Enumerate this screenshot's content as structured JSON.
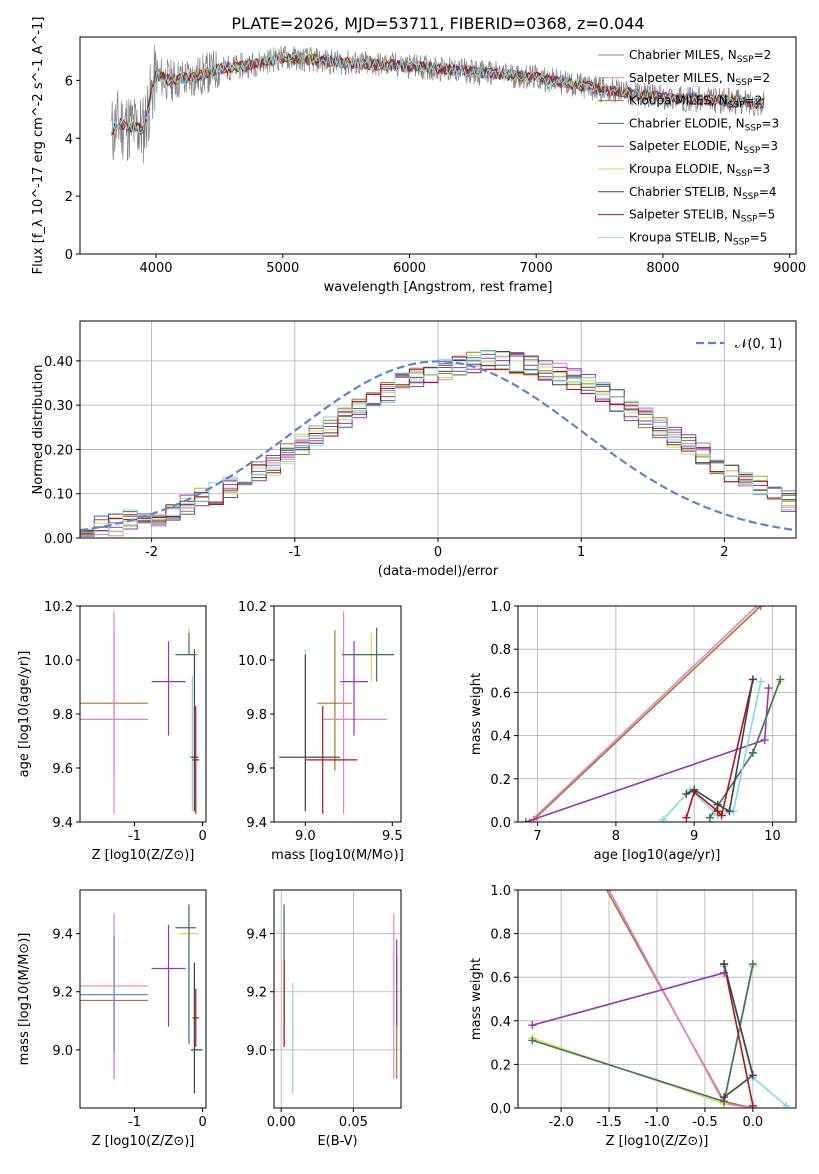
{
  "figure_title": "PLATE=2026, MJD=53711, FIBERID=0368, z=0.044",
  "colors": {
    "chabrier_miles": "#6b8bd6",
    "salpeter_miles": "#e87fc7",
    "kroupa_miles": "#a07a2a",
    "chabrier_elodie": "#3f6f6f",
    "salpeter_elodie": "#9a35b8",
    "kroupa_elodie": "#d2e04a",
    "chabrier_stelib": "#444444",
    "salpeter_stelib": "#b01414",
    "kroupa_stelib": "#86d8e0",
    "data_spectrum": "#808080",
    "gaussian": "#5b84d4"
  },
  "chart_data": [
    {
      "id": "spectrum",
      "type": "line",
      "title": "PLATE=2026, MJD=53711, FIBERID=0368, z=0.044",
      "xlabel": "wavelength [Angstrom, rest frame]",
      "ylabel": "Flux [f_λ 10^-17 erg cm^-2 s^-1 A^-1]",
      "xlim": [
        3400,
        9050
      ],
      "ylim": [
        0,
        7.5
      ],
      "xticks": [
        4000,
        5000,
        6000,
        7000,
        8000,
        9000
      ],
      "yticks": [
        0,
        2,
        4,
        6
      ],
      "legend": "right",
      "series": [
        {
          "name": "Chabrier MILES, N_SSP=2",
          "color": "#6b8bd6"
        },
        {
          "name": "Salpeter MILES, N_SSP=2",
          "color": "#e87fc7"
        },
        {
          "name": "Kroupa MILES, N_SSP=2",
          "color": "#a07a2a"
        },
        {
          "name": "Chabrier ELODIE, N_SSP=3",
          "color": "#3f6f6f"
        },
        {
          "name": "Salpeter ELODIE, N_SSP=3",
          "color": "#9a35b8"
        },
        {
          "name": "Kroupa ELODIE, N_SSP=3",
          "color": "#d2e04a"
        },
        {
          "name": "Chabrier STELIB, N_SSP=4",
          "color": "#444444"
        },
        {
          "name": "Salpeter STELIB, N_SSP=5",
          "color": "#b01414"
        },
        {
          "name": "Kroupa STELIB, N_SSP=5",
          "color": "#86d8e0"
        }
      ],
      "model_continuum": {
        "x": [
          3650,
          3700,
          3800,
          3900,
          4000,
          4100,
          4300,
          4500,
          4700,
          5000,
          5500,
          6000,
          6500,
          7000,
          7500,
          8000,
          8500,
          8800
        ],
        "y": [
          4.2,
          4.5,
          4.4,
          4.3,
          6.2,
          6.0,
          6.1,
          6.4,
          6.5,
          6.8,
          6.6,
          6.5,
          6.3,
          6.1,
          5.7,
          5.4,
          5.3,
          5.2
        ]
      },
      "plotted_range": [
        3650,
        8800
      ]
    },
    {
      "id": "residuals",
      "type": "bar",
      "xlabel": "(data-model)/error",
      "ylabel": "Normed distribution",
      "xlim": [
        -2.5,
        2.5
      ],
      "ylim": [
        0,
        0.49
      ],
      "xticks": [
        -2,
        -1,
        0,
        1,
        2
      ],
      "yticks": [
        0.0,
        0.1,
        0.2,
        0.3,
        0.4
      ],
      "grid": true,
      "legend": "top-right",
      "gaussian_label": "𝒩(0, 1)",
      "bin_edges_start": -2.5,
      "bin_width": 0.1,
      "histogram": [
        0.02,
        0.025,
        0.03,
        0.04,
        0.045,
        0.05,
        0.06,
        0.075,
        0.09,
        0.1,
        0.115,
        0.13,
        0.15,
        0.165,
        0.19,
        0.21,
        0.23,
        0.25,
        0.27,
        0.29,
        0.31,
        0.33,
        0.35,
        0.36,
        0.37,
        0.38,
        0.39,
        0.395,
        0.4,
        0.4,
        0.395,
        0.39,
        0.38,
        0.37,
        0.36,
        0.345,
        0.33,
        0.31,
        0.29,
        0.27,
        0.25,
        0.23,
        0.21,
        0.19,
        0.17,
        0.15,
        0.13,
        0.115,
        0.1,
        0.085
      ],
      "gaussian": {
        "mu": 0,
        "sigma": 1
      }
    },
    {
      "id": "age_vs_Z",
      "type": "scatter",
      "xlabel": "Z [log10(Z/Z⊙)]",
      "ylabel": "age [log10(age/yr)]",
      "xlim": [
        -1.8,
        0.05
      ],
      "ylim": [
        9.4,
        10.2
      ],
      "xticks": [
        -1,
        0
      ],
      "yticks": [
        9.4,
        9.6,
        9.8,
        10.0,
        10.2
      ],
      "points": [
        {
          "series": "Kroupa MILES",
          "x": -1.3,
          "y": 9.84,
          "xerr": [
            0.5,
            0.5
          ],
          "yerr": [
            0.25,
            0.27
          ]
        },
        {
          "series": "Salpeter MILES",
          "x": -1.3,
          "y": 9.78,
          "xerr": [
            0.5,
            0.5
          ],
          "yerr": [
            0.35,
            0.4
          ]
        },
        {
          "series": "Salpeter ELODIE",
          "x": -0.5,
          "y": 9.92,
          "xerr": [
            0.25,
            0.25
          ],
          "yerr": [
            0.2,
            0.15
          ]
        },
        {
          "series": "Kroupa ELODIE",
          "x": -0.2,
          "y": 10.02,
          "xerr": [
            0.15,
            0.15
          ],
          "yerr": [
            0.0,
            0.1
          ]
        },
        {
          "series": "Chabrier ELODIE",
          "x": -0.2,
          "y": 10.02,
          "xerr": [
            0.2,
            0.1
          ],
          "yerr": [
            0.0,
            0.08
          ]
        },
        {
          "series": "Kroupa STELIB",
          "x": -0.15,
          "y": 9.64,
          "xerr": [
            0.05,
            0.1
          ],
          "yerr": [
            0.2,
            0.3
          ]
        },
        {
          "series": "Salpeter STELIB",
          "x": -0.1,
          "y": 9.63,
          "xerr": [
            0.05,
            0.05
          ],
          "yerr": [
            0.2,
            0.2
          ]
        },
        {
          "series": "Chabrier STELIB",
          "x": -0.12,
          "y": 9.64,
          "xerr": [
            0.05,
            0.05
          ],
          "yerr": [
            0.2,
            0.4
          ]
        }
      ]
    },
    {
      "id": "age_vs_mass",
      "type": "scatter",
      "xlabel": "mass [log10(M/M⊙)]",
      "xlim": [
        8.82,
        9.55
      ],
      "ylim": [
        9.4,
        10.2
      ],
      "xticks": [
        9.0,
        9.5
      ],
      "yticks": [
        9.4,
        9.6,
        9.8,
        10.0,
        10.2
      ],
      "points": [
        {
          "series": "Kroupa MILES",
          "x": 9.17,
          "y": 9.84,
          "xerr": [
            0.1,
            0.1
          ],
          "yerr": [
            0.25,
            0.27
          ]
        },
        {
          "series": "Salpeter MILES",
          "x": 9.22,
          "y": 9.78,
          "xerr": [
            0.12,
            0.25
          ],
          "yerr": [
            0.35,
            0.4
          ]
        },
        {
          "series": "Salpeter ELODIE",
          "x": 9.28,
          "y": 9.92,
          "xerr": [
            0.08,
            0.08
          ],
          "yerr": [
            0.2,
            0.15
          ]
        },
        {
          "series": "Kroupa ELODIE",
          "x": 9.38,
          "y": 10.02,
          "xerr": [
            0.16,
            0.1
          ],
          "yerr": [
            0.1,
            0.08
          ]
        },
        {
          "series": "Chabrier ELODIE",
          "x": 9.41,
          "y": 10.02,
          "xerr": [
            0.2,
            0.1
          ],
          "yerr": [
            0.1,
            0.1
          ]
        },
        {
          "series": "Kroupa STELIB",
          "x": 9.0,
          "y": 9.64,
          "xerr": [
            0.15,
            0.15
          ],
          "yerr": [
            0.2,
            0.4
          ]
        },
        {
          "series": "Salpeter STELIB",
          "x": 9.1,
          "y": 9.63,
          "xerr": [
            0.1,
            0.2
          ],
          "yerr": [
            0.2,
            0.2
          ]
        },
        {
          "series": "Chabrier STELIB",
          "x": 9.0,
          "y": 9.64,
          "xerr": [
            0.15,
            0.2
          ],
          "yerr": [
            0.2,
            0.38
          ]
        }
      ]
    },
    {
      "id": "weight_vs_age",
      "type": "line",
      "xlabel": "age [log10(age/yr)]",
      "ylabel": "mass weight",
      "xlim": [
        6.75,
        10.3
      ],
      "ylim": [
        0,
        1.0
      ],
      "xticks": [
        7,
        8,
        9,
        10
      ],
      "yticks": [
        0.0,
        0.2,
        0.4,
        0.6,
        0.8,
        1.0
      ],
      "grid": true,
      "series": [
        {
          "name": "Kroupa MILES",
          "x": [
            6.95,
            9.85
          ],
          "y": [
            0.01,
            1.0
          ]
        },
        {
          "name": "Salpeter MILES",
          "x": [
            6.9,
            9.8
          ],
          "y": [
            0.0,
            1.0
          ]
        },
        {
          "name": "Salpeter ELODIE",
          "x": [
            6.85,
            9.9,
            9.95
          ],
          "y": [
            0.0,
            0.38,
            0.62
          ]
        },
        {
          "name": "Kroupa ELODIE",
          "x": [
            9.2,
            9.75,
            10.1
          ],
          "y": [
            0.02,
            0.32,
            0.65
          ]
        },
        {
          "name": "Chabrier ELODIE",
          "x": [
            9.2,
            9.75,
            10.1
          ],
          "y": [
            0.02,
            0.32,
            0.66
          ]
        },
        {
          "name": "Kroupa STELIB",
          "x": [
            8.6,
            8.95,
            9.3,
            9.5,
            9.85
          ],
          "y": [
            0.01,
            0.15,
            0.03,
            0.05,
            0.65
          ]
        },
        {
          "name": "Salpeter STELIB",
          "x": [
            8.9,
            9.0,
            9.3,
            9.35,
            9.75
          ],
          "y": [
            0.02,
            0.14,
            0.05,
            0.03,
            0.66
          ]
        },
        {
          "name": "Chabrier STELIB",
          "x": [
            8.9,
            9.0,
            9.3,
            9.45,
            9.75
          ],
          "y": [
            0.13,
            0.15,
            0.08,
            0.05,
            0.66
          ]
        }
      ]
    },
    {
      "id": "mass_vs_Z",
      "type": "scatter",
      "xlabel": "Z [log10(Z/Z⊙)]",
      "ylabel": "mass [log10(M/M⊙)]",
      "xlim": [
        -1.8,
        0.05
      ],
      "ylim": [
        8.8,
        9.55
      ],
      "xticks": [
        -1,
        0
      ],
      "yticks": [
        9.0,
        9.2,
        9.4
      ],
      "points": [
        {
          "series": "Kroupa MILES",
          "x": -1.3,
          "y": 9.17,
          "xerr": [
            0.5,
            0.5
          ],
          "yerr": [
            0.27,
            0.23
          ]
        },
        {
          "series": "Salpeter MILES",
          "x": -1.3,
          "y": 9.22,
          "xerr": [
            0.5,
            0.5
          ],
          "yerr": [
            0.32,
            0.25
          ]
        },
        {
          "series": "Chabrier MILES",
          "x": -1.3,
          "y": 9.19,
          "xerr": [
            0.5,
            0.5
          ],
          "yerr": [
            0.2,
            0.2
          ]
        },
        {
          "series": "Salpeter ELODIE",
          "x": -0.5,
          "y": 9.28,
          "xerr": [
            0.25,
            0.25
          ],
          "yerr": [
            0.2,
            0.15
          ]
        },
        {
          "series": "Kroupa ELODIE",
          "x": -0.2,
          "y": 9.4,
          "xerr": [
            0.15,
            0.15
          ],
          "yerr": [
            0.3,
            0.1
          ]
        },
        {
          "series": "Chabrier ELODIE",
          "x": -0.2,
          "y": 9.42,
          "xerr": [
            0.2,
            0.1
          ],
          "yerr": [
            0.4,
            0.08
          ]
        },
        {
          "series": "Salpeter STELIB",
          "x": -0.1,
          "y": 9.11,
          "xerr": [
            0.05,
            0.05
          ],
          "yerr": [
            0.1,
            0.1
          ]
        },
        {
          "series": "Kroupa STELIB",
          "x": -0.12,
          "y": 9.0,
          "xerr": [
            0.05,
            0.12
          ],
          "yerr": [
            0.15,
            0.3
          ]
        },
        {
          "series": "Chabrier STELIB",
          "x": -0.12,
          "y": 9.0,
          "xerr": [
            0.05,
            0.12
          ],
          "yerr": [
            0.15,
            0.3
          ]
        }
      ]
    },
    {
      "id": "mass_vs_EBV",
      "type": "scatter",
      "xlabel": "E(B-V)",
      "xlim": [
        -0.005,
        0.083
      ],
      "ylim": [
        8.8,
        9.55
      ],
      "xticks": [
        0.0,
        0.05
      ],
      "yticks": [
        9.0,
        9.2,
        9.4
      ],
      "grid": true,
      "points": [
        {
          "series": "Kroupa ELODIE",
          "x": 0.002,
          "y": 9.4,
          "yerr": [
            0.3,
            0.1
          ]
        },
        {
          "series": "Chabrier ELODIE",
          "x": 0.002,
          "y": 9.42,
          "yerr": [
            0.4,
            0.08
          ]
        },
        {
          "series": "Salpeter STELIB",
          "x": 0.002,
          "y": 9.11,
          "yerr": [
            0.1,
            0.2
          ]
        },
        {
          "series": "Kroupa STELIB",
          "x": 0.008,
          "y": 9.0,
          "yerr": [
            0.15,
            0.23
          ]
        },
        {
          "series": "Salpeter MILES",
          "x": 0.078,
          "y": 9.22,
          "yerr": [
            0.32,
            0.25
          ]
        },
        {
          "series": "Kroupa MILES",
          "x": 0.08,
          "y": 9.17,
          "yerr": [
            0.27,
            0.15
          ]
        },
        {
          "series": "Salpeter ELODIE",
          "x": 0.08,
          "y": 9.28,
          "yerr": [
            0.2,
            0.1
          ]
        }
      ]
    },
    {
      "id": "weight_vs_Z",
      "type": "line",
      "xlabel": "Z [log10(Z/Z⊙)]",
      "ylabel": "mass weight",
      "xlim": [
        -2.45,
        0.45
      ],
      "ylim": [
        0,
        1.0
      ],
      "xticks": [
        -2.0,
        -1.5,
        -1.0,
        -0.5,
        0.0
      ],
      "yticks": [
        0.0,
        0.2,
        0.4,
        0.6,
        0.8,
        1.0
      ],
      "grid": true,
      "series": [
        {
          "name": "Kroupa MILES",
          "x": [
            -1.55,
            -0.3,
            0.0
          ],
          "y": [
            1.02,
            0.03,
            0.0
          ]
        },
        {
          "name": "Salpeter MILES",
          "x": [
            -1.5,
            -0.3,
            0.0
          ],
          "y": [
            1.0,
            0.02,
            0.0
          ]
        },
        {
          "name": "Salpeter ELODIE",
          "x": [
            -2.3,
            -0.3
          ],
          "y": [
            0.38,
            0.62
          ]
        },
        {
          "name": "Kroupa ELODIE",
          "x": [
            -2.3,
            -0.3,
            0.0
          ],
          "y": [
            0.32,
            0.02,
            0.65
          ]
        },
        {
          "name": "Chabrier ELODIE",
          "x": [
            -2.3,
            -0.3,
            0.0
          ],
          "y": [
            0.31,
            0.03,
            0.66
          ]
        },
        {
          "name": "Kroupa STELIB",
          "x": [
            -0.3,
            0.0,
            0.35
          ],
          "y": [
            0.65,
            0.14,
            0.01
          ]
        },
        {
          "name": "Salpeter STELIB",
          "x": [
            -0.3,
            0.0
          ],
          "y": [
            0.66,
            0.01
          ]
        },
        {
          "name": "Chabrier STELIB",
          "x": [
            -0.3,
            0.0,
            -0.3
          ],
          "y": [
            0.66,
            0.15,
            0.05
          ]
        }
      ]
    }
  ]
}
